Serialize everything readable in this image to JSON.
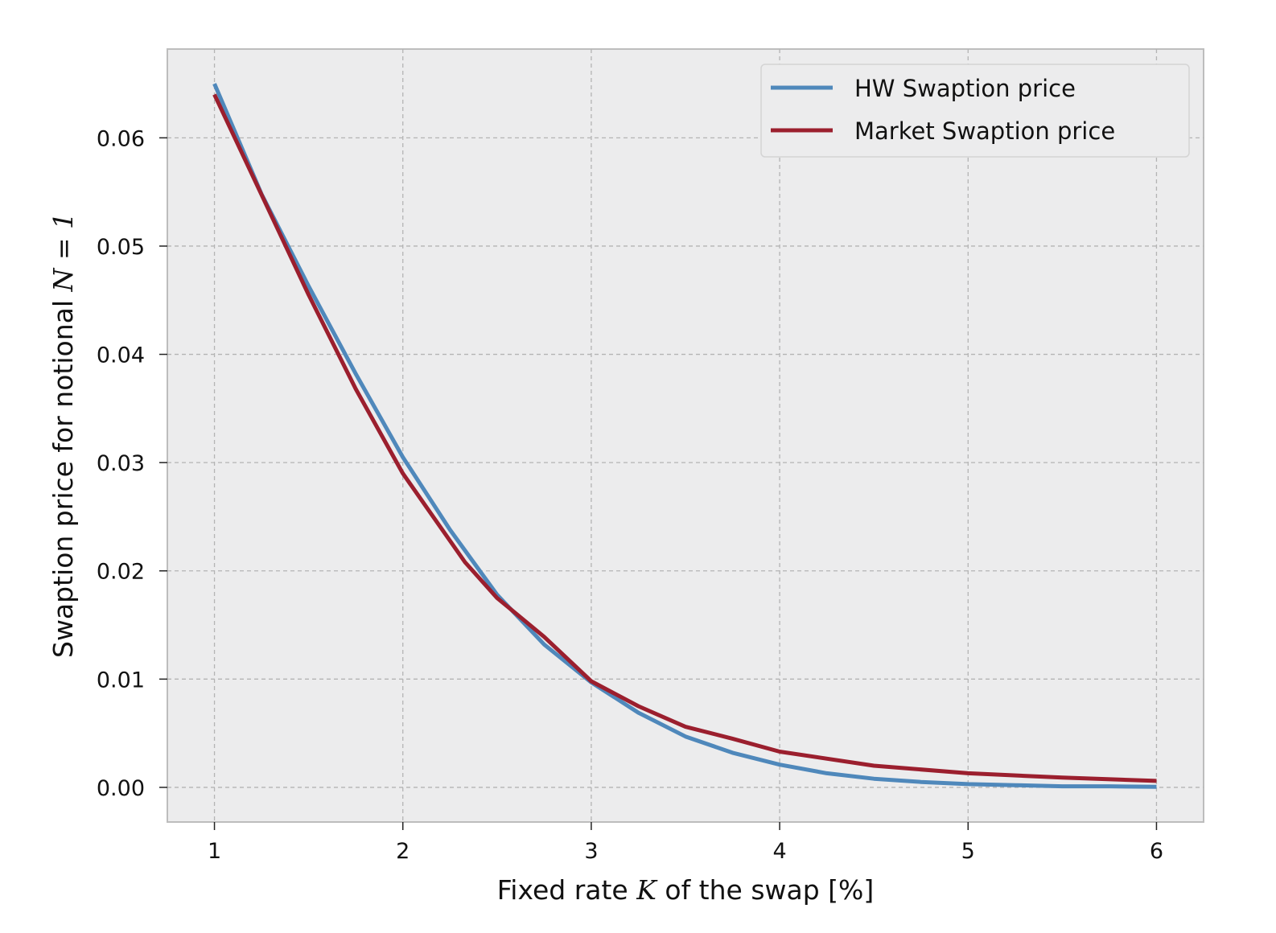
{
  "chart_data": {
    "type": "line",
    "xlabel": {
      "pre": "Fixed rate ",
      "var": "K",
      "post": " of the swap [%]"
    },
    "ylabel": {
      "pre": "Swaption price for notional ",
      "var": "N",
      "post": " = 1"
    },
    "xlim": [
      0.75,
      6.25
    ],
    "ylim": [
      -0.0032,
      0.0682
    ],
    "xticks": [
      1,
      2,
      3,
      4,
      5,
      6
    ],
    "xtick_labels": [
      "1",
      "2",
      "3",
      "4",
      "5",
      "6"
    ],
    "yticks": [
      0.0,
      0.01,
      0.02,
      0.03,
      0.04,
      0.05,
      0.06
    ],
    "ytick_labels": [
      "0.00",
      "0.01",
      "0.02",
      "0.03",
      "0.04",
      "0.05",
      "0.06"
    ],
    "grid": true,
    "legend_position": "top-right",
    "background": "#ececed",
    "series": [
      {
        "name": "HW Swaption price",
        "color": "#4f88bb",
        "x": [
          1.0,
          1.25,
          1.5,
          1.75,
          2.0,
          2.25,
          2.5,
          2.75,
          3.0,
          3.25,
          3.5,
          3.75,
          4.0,
          4.25,
          4.5,
          4.75,
          5.0,
          5.25,
          5.5,
          5.75,
          6.0
        ],
        "y": [
          0.065,
          0.0548,
          0.0463,
          0.0382,
          0.0305,
          0.0238,
          0.0178,
          0.0132,
          0.0097,
          0.0069,
          0.0047,
          0.0032,
          0.0021,
          0.0013,
          0.0008,
          0.0005,
          0.0003,
          0.0002,
          0.0001,
          0.0001,
          5e-05
        ]
      },
      {
        "name": "Market Swaption price",
        "color": "#9b1f2e",
        "x": [
          1.0,
          1.5,
          1.75,
          2.0,
          2.33,
          2.5,
          2.75,
          3.0,
          3.25,
          3.5,
          3.75,
          4.0,
          4.5,
          5.0,
          5.5,
          6.0
        ],
        "y": [
          0.064,
          0.0455,
          0.0368,
          0.029,
          0.0208,
          0.0175,
          0.0139,
          0.0098,
          0.0075,
          0.0056,
          0.0045,
          0.0033,
          0.002,
          0.0013,
          0.0009,
          0.0006
        ]
      }
    ]
  }
}
